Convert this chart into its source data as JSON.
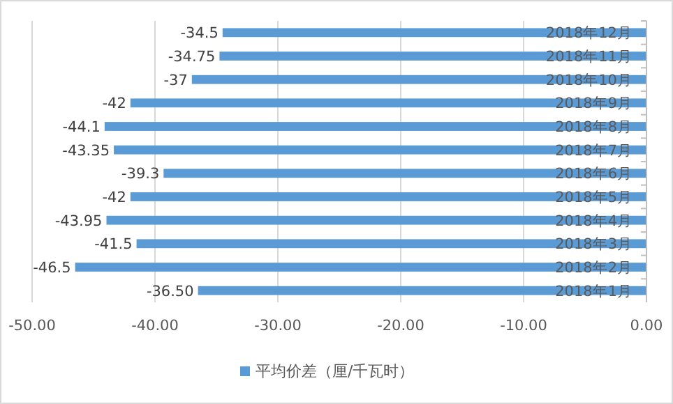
{
  "chart_data": {
    "type": "bar",
    "orientation": "horizontal",
    "categories": [
      "2018年12月",
      "2018年11月",
      "2018年10月",
      "2018年9月",
      "2018年8月",
      "2018年7月",
      "2018年6月",
      "2018年5月",
      "2018年4月",
      "2018年3月",
      "2018年2月",
      "2018年1月"
    ],
    "series": [
      {
        "name": "平均价差（厘/千瓦时）",
        "color": "#5b9bd5",
        "values": [
          -34.5,
          -34.75,
          -37,
          -42,
          -44.1,
          -43.35,
          -39.3,
          -42,
          -43.95,
          -41.5,
          -46.5,
          -36.5
        ],
        "value_labels": [
          "-34.5",
          "-34.75",
          "-37",
          "-42",
          "-44.1",
          "-43.35",
          "-39.3",
          "-42",
          "-43.95",
          "-41.5",
          "-46.5",
          "-36.50"
        ]
      }
    ],
    "xlim": [
      -50,
      0
    ],
    "xticks": [
      {
        "value": -50,
        "label": "-50.00"
      },
      {
        "value": -40,
        "label": "-40.00"
      },
      {
        "value": -30,
        "label": "-30.00"
      },
      {
        "value": -20,
        "label": "-20.00"
      },
      {
        "value": -10,
        "label": "-10.00"
      },
      {
        "value": 0,
        "label": "0.00"
      }
    ],
    "grid": "x",
    "legend": "bottom"
  }
}
